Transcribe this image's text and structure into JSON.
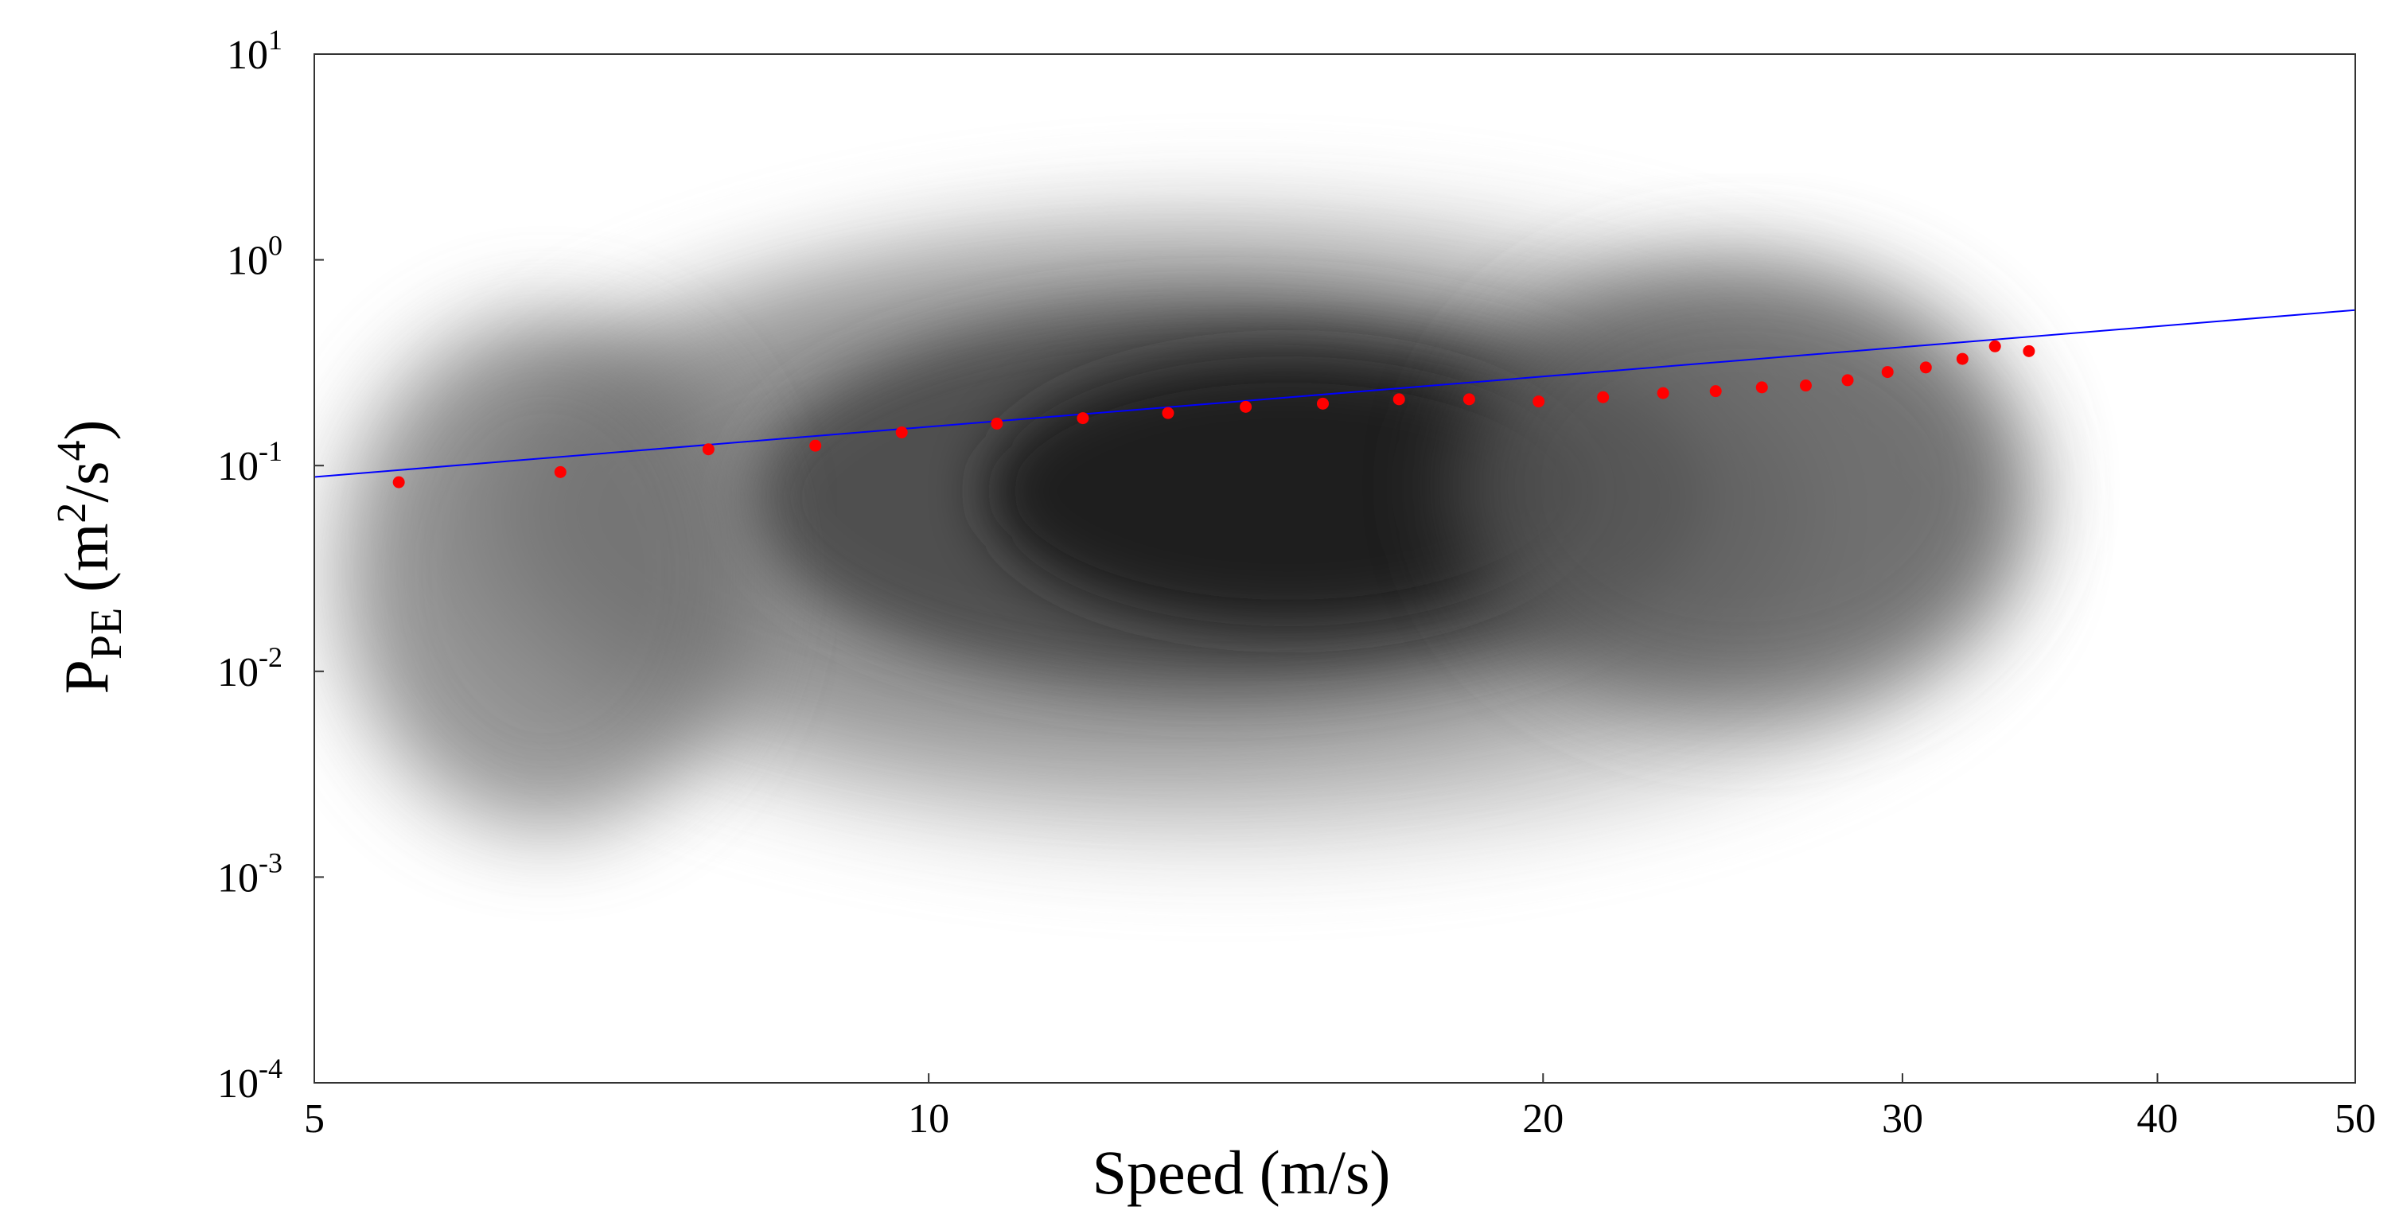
{
  "chart_data": {
    "type": "scatter",
    "title": "",
    "xlabel": "Speed (m/s)",
    "ylabel": {
      "main": "P",
      "subscript": "PE",
      "units_open": " (m",
      "units_sup1": "2",
      "units_mid": "/s",
      "units_sup2": "4",
      "units_close": ")"
    },
    "x_scale": "log",
    "y_scale": "log",
    "xlim": [
      5,
      50
    ],
    "ylim": [
      0.0001,
      10
    ],
    "x_ticks": [
      {
        "value": 5,
        "label": "5"
      },
      {
        "value": 10,
        "label": "10"
      },
      {
        "value": 20,
        "label": "20"
      },
      {
        "value": 30,
        "label": "30"
      },
      {
        "value": 40,
        "label": "40"
      },
      {
        "value": 50,
        "label": "50"
      }
    ],
    "y_ticks": [
      {
        "value": 0.0001,
        "base": "10",
        "exp": "-4"
      },
      {
        "value": 0.001,
        "base": "10",
        "exp": "-3"
      },
      {
        "value": 0.01,
        "base": "10",
        "exp": "-2"
      },
      {
        "value": 0.1,
        "base": "10",
        "exp": "-1"
      },
      {
        "value": 1,
        "base": "10",
        "exp": "0"
      },
      {
        "value": 10,
        "base": "10",
        "exp": "1"
      }
    ],
    "grid": false,
    "density_background": {
      "type": "heatmap",
      "colormap": "grayscale",
      "note_shape": "dense 2D histogram of P_PE vs speed, darkest near 12-18 m/s and 0.02-0.1 m^2/s^4"
    },
    "binned_means": {
      "color": "#ff0000",
      "x": [
        5.5,
        6.6,
        7.8,
        8.8,
        9.7,
        10.8,
        11.9,
        13.1,
        14.3,
        15.6,
        17.0,
        18.4,
        19.9,
        21.4,
        22.9,
        24.3,
        25.6,
        26.9,
        28.2,
        29.5,
        30.8,
        32.1,
        33.3,
        34.6
      ],
      "y": [
        0.083,
        0.093,
        0.12,
        0.125,
        0.145,
        0.16,
        0.17,
        0.18,
        0.193,
        0.2,
        0.21,
        0.21,
        0.205,
        0.215,
        0.225,
        0.23,
        0.24,
        0.245,
        0.26,
        0.285,
        0.3,
        0.33,
        0.38,
        0.36
      ]
    },
    "fit_line": {
      "color": "#0000ff",
      "x": [
        5,
        50
      ],
      "y": [
        0.088,
        0.57
      ]
    }
  }
}
